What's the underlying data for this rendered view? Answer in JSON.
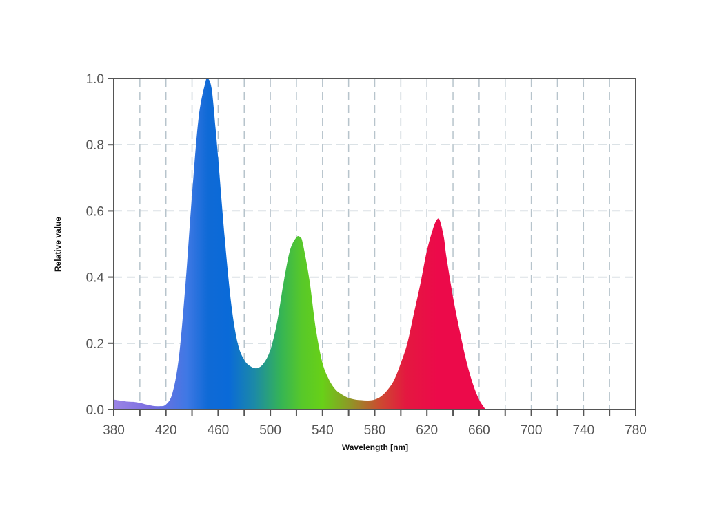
{
  "chart_data": {
    "type": "area",
    "title": "",
    "xlabel": "Wavelength [nm]",
    "ylabel": "Relative value",
    "xlim": [
      380,
      780
    ],
    "ylim": [
      0,
      1
    ],
    "x_ticks": [
      "380",
      "420",
      "460",
      "500",
      "540",
      "580",
      "620",
      "660",
      "700",
      "740",
      "780"
    ],
    "y_ticks": [
      "0.0",
      "0.2",
      "0.4",
      "0.6",
      "0.8",
      "1.0"
    ],
    "grid": true,
    "series": [
      {
        "x": [
          380,
          385,
          390,
          395,
          400,
          405,
          410,
          415,
          420,
          425,
          430,
          435,
          440,
          445,
          450,
          452,
          455,
          458,
          460,
          465,
          470,
          475,
          480,
          485,
          490,
          495,
          500,
          505,
          510,
          515,
          520,
          523,
          525,
          530,
          535,
          540,
          545,
          550,
          555,
          560,
          565,
          570,
          575,
          580,
          585,
          590,
          595,
          600,
          605,
          610,
          615,
          620,
          625,
          628,
          630,
          633,
          635,
          640,
          645,
          650,
          655,
          660,
          665
        ],
        "y": [
          0.03,
          0.027,
          0.024,
          0.023,
          0.02,
          0.015,
          0.011,
          0.01,
          0.015,
          0.05,
          0.16,
          0.38,
          0.65,
          0.88,
          0.985,
          1.0,
          0.97,
          0.85,
          0.76,
          0.52,
          0.32,
          0.2,
          0.15,
          0.13,
          0.125,
          0.14,
          0.18,
          0.26,
          0.38,
          0.48,
          0.52,
          0.52,
          0.5,
          0.39,
          0.24,
          0.14,
          0.09,
          0.06,
          0.045,
          0.035,
          0.03,
          0.028,
          0.027,
          0.03,
          0.04,
          0.06,
          0.09,
          0.14,
          0.2,
          0.29,
          0.38,
          0.48,
          0.55,
          0.575,
          0.57,
          0.52,
          0.46,
          0.34,
          0.24,
          0.15,
          0.08,
          0.03,
          0.0
        ]
      }
    ]
  }
}
